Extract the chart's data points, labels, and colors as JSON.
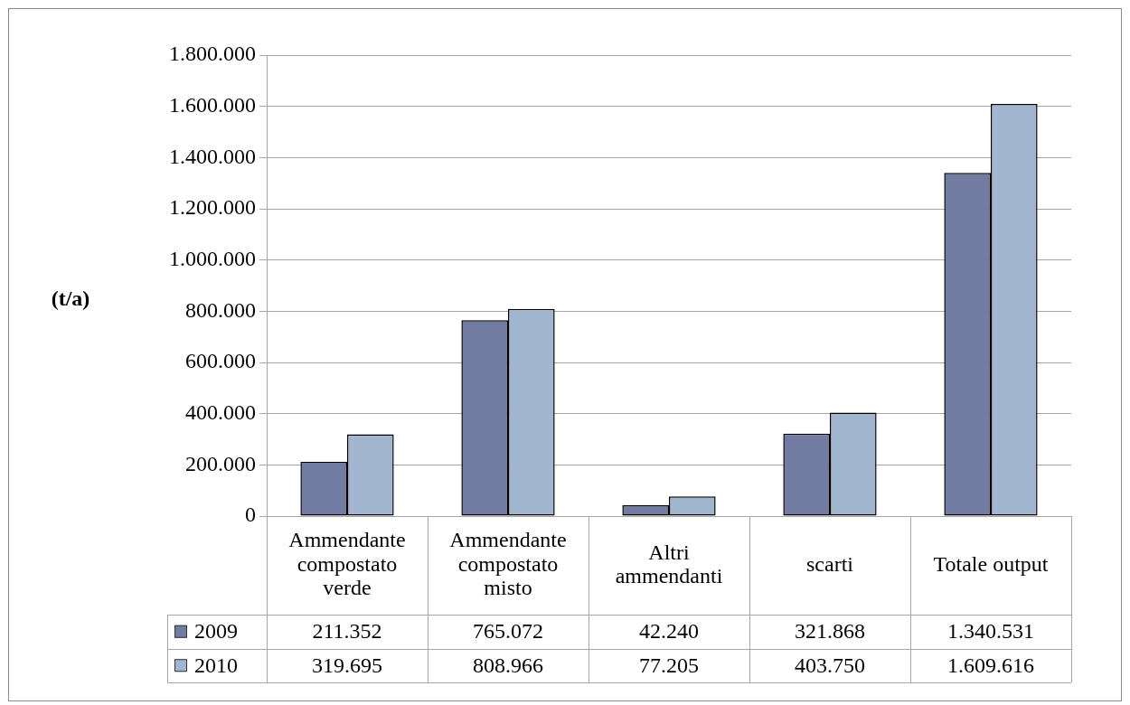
{
  "chart_data": {
    "type": "bar",
    "ylabel": "(t/a)",
    "categories": [
      "Ammendante compostato verde",
      "Ammendante compostato misto",
      "Altri ammendanti",
      "scarti",
      "Totale output"
    ],
    "series": [
      {
        "name": "2009",
        "color": "#727ca3",
        "values": [
          211352,
          765072,
          42240,
          321868,
          1340531
        ],
        "value_labels": [
          "211.352",
          "765.072",
          "42.240",
          "321.868",
          "1.340.531"
        ]
      },
      {
        "name": "2010",
        "color": "#a2b7cf",
        "values": [
          319695,
          808966,
          77205,
          403750,
          1609616
        ],
        "value_labels": [
          "319.695",
          "808.966",
          "77.205",
          "403.750",
          "1.609.616"
        ]
      }
    ],
    "ylim": [
      0,
      1800000
    ],
    "yticks": [
      0,
      {
        "value": 200000,
        "label": "200.000"
      },
      {
        "value": 400000,
        "label": "400.000"
      },
      {
        "value": 600000,
        "label": "600.000"
      },
      {
        "value": 800000,
        "label": "800.000"
      },
      {
        "value": 1000000,
        "label": "1.000.000"
      },
      {
        "value": 1200000,
        "label": "1.200.000"
      },
      {
        "value": 1400000,
        "label": "1.400.000"
      },
      {
        "value": 1600000,
        "label": "1.600.000"
      },
      {
        "value": 1800000,
        "label": "1.800.000"
      }
    ],
    "grid": "y",
    "legend": "bottom left"
  }
}
